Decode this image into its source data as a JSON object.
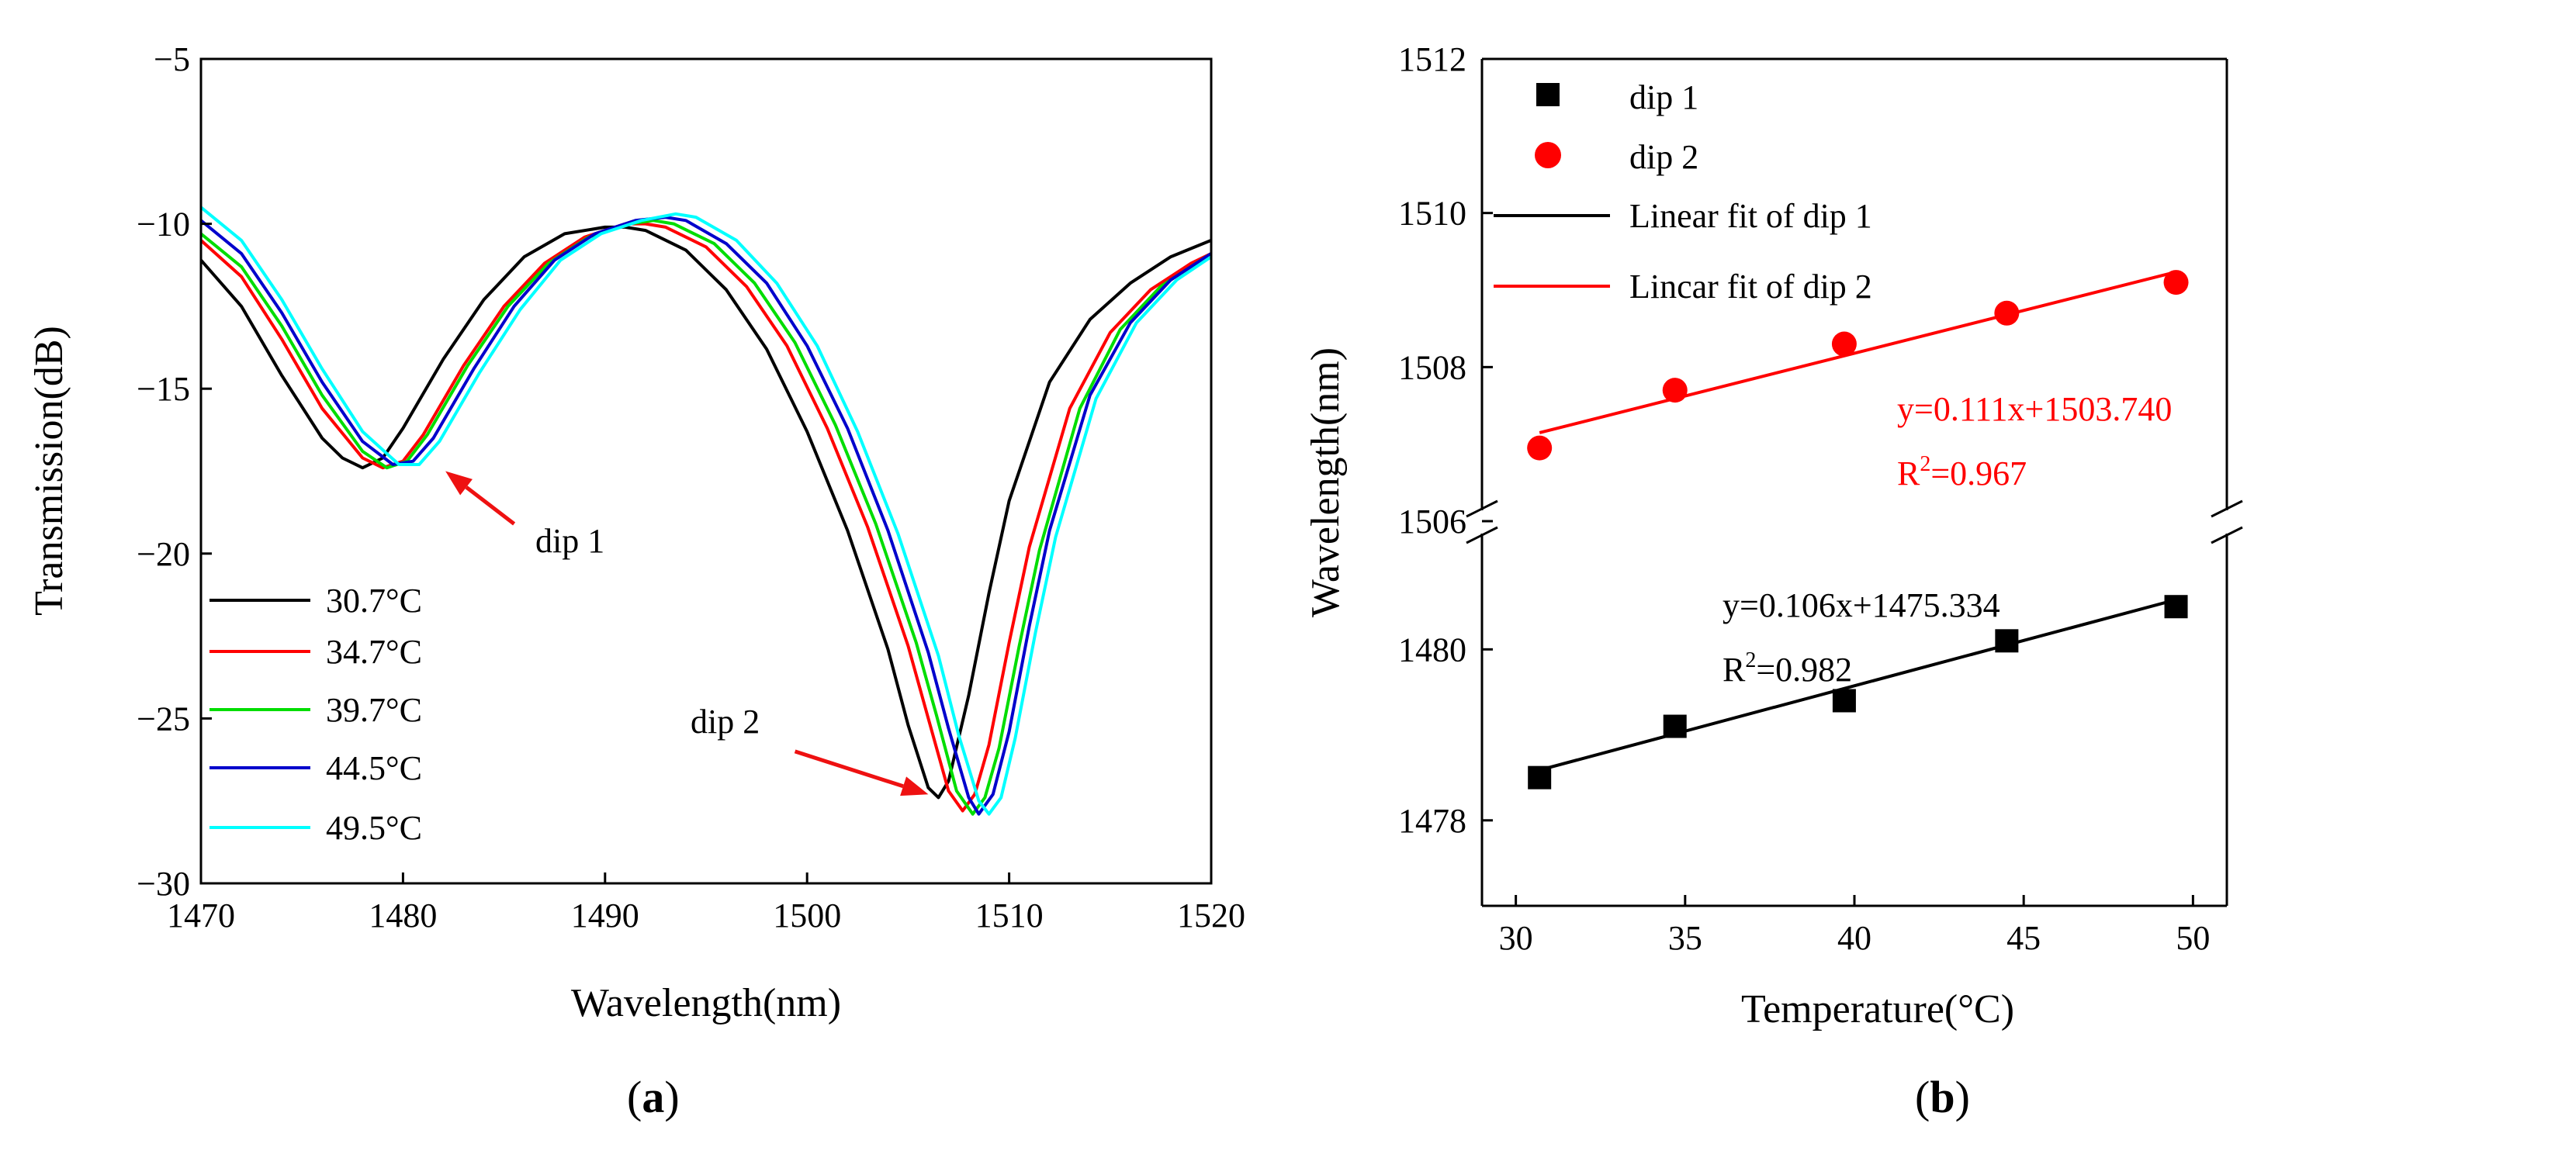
{
  "chart_data": [
    {
      "id": "a",
      "type": "line",
      "panel_label_open": "(",
      "panel_label_letter": "a",
      "panel_label_close": ")",
      "xlabel": "Wavelength(nm)",
      "ylabel": "Transmission(dB)",
      "xlim": [
        1470,
        1520
      ],
      "ylim": [
        -30,
        -5
      ],
      "xticks": [
        1470,
        1480,
        1490,
        1500,
        1510,
        1520
      ],
      "yticks": [
        -5,
        -10,
        -15,
        -20,
        -25,
        -30
      ],
      "xtick_labels": [
        "1470",
        "1480",
        "1490",
        "1500",
        "1510",
        "1520"
      ],
      "ytick_labels": [
        "−5",
        "−10",
        "−15",
        "−20",
        "−25",
        "−30"
      ],
      "series": [
        {
          "name": "30.7°C",
          "color": "#000000",
          "x": [
            1470,
            1472,
            1474,
            1476,
            1477,
            1478,
            1479,
            1480,
            1482,
            1484,
            1486,
            1488,
            1490,
            1491,
            1492,
            1494,
            1496,
            1498,
            1500,
            1502,
            1504,
            1505,
            1506,
            1506.5,
            1507,
            1508,
            1509,
            1510,
            1512,
            1514,
            1516,
            1518,
            1520
          ],
          "y": [
            -11.1,
            -12.5,
            -14.6,
            -16.5,
            -17.1,
            -17.4,
            -17.1,
            -16.2,
            -14.1,
            -12.3,
            -11.0,
            -10.3,
            -10.1,
            -10.1,
            -10.2,
            -10.8,
            -12.0,
            -13.8,
            -16.3,
            -19.3,
            -22.9,
            -25.2,
            -27.1,
            -27.4,
            -26.9,
            -24.3,
            -21.2,
            -18.4,
            -14.8,
            -12.9,
            -11.8,
            -11.0,
            -10.5
          ]
        },
        {
          "name": "34.7°C",
          "color": "#ff0000",
          "x": [
            1470,
            1472,
            1474,
            1476,
            1478,
            1479,
            1480,
            1481,
            1483,
            1485,
            1487,
            1489,
            1491,
            1492,
            1493,
            1495,
            1497,
            1499,
            1501,
            1503,
            1505,
            1506,
            1507,
            1507.7,
            1508.3,
            1509,
            1510,
            1511,
            1513,
            1515,
            1517,
            1519,
            1520
          ],
          "y": [
            -10.5,
            -11.6,
            -13.5,
            -15.6,
            -17.1,
            -17.4,
            -17.2,
            -16.4,
            -14.3,
            -12.5,
            -11.2,
            -10.4,
            -10.0,
            -10.0,
            -10.1,
            -10.7,
            -11.9,
            -13.7,
            -16.2,
            -19.2,
            -22.8,
            -25.0,
            -27.2,
            -27.8,
            -27.3,
            -25.8,
            -22.7,
            -19.8,
            -15.6,
            -13.3,
            -12.0,
            -11.2,
            -10.9
          ]
        },
        {
          "name": "39.7°C",
          "color": "#00dd00",
          "x": [
            1470,
            1472,
            1474,
            1476,
            1478,
            1479.2,
            1480.2,
            1481.2,
            1483.2,
            1485.2,
            1487.2,
            1489.2,
            1491.2,
            1492.4,
            1493.4,
            1495.4,
            1497.4,
            1499.4,
            1501.4,
            1503.4,
            1505.4,
            1506.4,
            1507.4,
            1508.2,
            1508.8,
            1509.5,
            1510.5,
            1511.5,
            1513.5,
            1515.5,
            1517.5,
            1519.5,
            1520
          ],
          "y": [
            -10.3,
            -11.3,
            -13.1,
            -15.2,
            -16.9,
            -17.4,
            -17.2,
            -16.4,
            -14.3,
            -12.5,
            -11.2,
            -10.4,
            -10.0,
            -9.9,
            -10.0,
            -10.6,
            -11.8,
            -13.6,
            -16.1,
            -19.1,
            -22.7,
            -24.9,
            -27.2,
            -27.9,
            -27.4,
            -25.9,
            -22.8,
            -19.9,
            -15.6,
            -13.2,
            -11.9,
            -11.1,
            -10.9
          ]
        },
        {
          "name": "44.5°C",
          "color": "#0000cc",
          "x": [
            1470,
            1472,
            1474,
            1476,
            1478,
            1479.5,
            1480.5,
            1481.5,
            1483.5,
            1485.5,
            1487.5,
            1489.5,
            1491.5,
            1493,
            1494,
            1496,
            1498,
            1500,
            1502,
            1504,
            1506,
            1507,
            1508,
            1508.5,
            1509.2,
            1510,
            1511,
            1512,
            1514,
            1516,
            1518,
            1520
          ],
          "y": [
            -9.9,
            -10.9,
            -12.7,
            -14.8,
            -16.6,
            -17.3,
            -17.2,
            -16.5,
            -14.4,
            -12.5,
            -11.1,
            -10.3,
            -9.9,
            -9.8,
            -9.9,
            -10.6,
            -11.8,
            -13.7,
            -16.2,
            -19.3,
            -23.0,
            -25.3,
            -27.4,
            -27.9,
            -27.3,
            -25.4,
            -22.2,
            -19.3,
            -15.2,
            -13.0,
            -11.7,
            -10.9
          ]
        },
        {
          "name": "49.5°C",
          "color": "#00ffff",
          "x": [
            1470,
            1472,
            1474,
            1476,
            1478,
            1479.8,
            1480.8,
            1481.8,
            1483.8,
            1485.8,
            1487.8,
            1489.8,
            1491.8,
            1493.5,
            1494.5,
            1496.5,
            1498.5,
            1500.5,
            1502.5,
            1504.5,
            1506.5,
            1507.5,
            1508.5,
            1509,
            1509.6,
            1510.3,
            1511.3,
            1512.3,
            1514.3,
            1516.3,
            1518.3,
            1520
          ],
          "y": [
            -9.5,
            -10.5,
            -12.3,
            -14.4,
            -16.3,
            -17.3,
            -17.3,
            -16.6,
            -14.5,
            -12.6,
            -11.1,
            -10.3,
            -9.9,
            -9.7,
            -9.8,
            -10.5,
            -11.8,
            -13.7,
            -16.3,
            -19.4,
            -23.1,
            -25.5,
            -27.5,
            -27.9,
            -27.4,
            -25.6,
            -22.4,
            -19.5,
            -15.3,
            -13.0,
            -11.7,
            -11.0
          ]
        }
      ],
      "annotations": [
        {
          "text": "dip 1",
          "color": "#000000"
        },
        {
          "text": "dip 2",
          "color": "#000000"
        }
      ],
      "arrows": [
        {
          "label": "dip 1",
          "from": [
            1485.5,
            -19.1
          ],
          "to": [
            1482.1,
            -17.5
          ],
          "color": "#ee1111"
        },
        {
          "label": "dip 2",
          "from": [
            1499.4,
            -26.0
          ],
          "to": [
            1506.0,
            -27.3
          ],
          "color": "#ee1111"
        }
      ]
    },
    {
      "id": "b",
      "type": "scatter",
      "panel_label_open": "(",
      "panel_label_letter": "b",
      "panel_label_close": ")",
      "xlabel": "Temperature(°C)",
      "ylabel": "Wavelength(nm)",
      "xlim": [
        29,
        51
      ],
      "xticks": [
        30,
        35,
        40,
        45,
        50
      ],
      "xtick_labels": [
        "30",
        "35",
        "40",
        "45",
        "50"
      ],
      "axis_break": true,
      "upper_ylim": [
        1506,
        1512
      ],
      "upper_yticks": [
        1506,
        1508,
        1510,
        1512
      ],
      "upper_ytick_labels": [
        "1506",
        "1508",
        "1510",
        "1512"
      ],
      "lower_ylim": [
        1477,
        1481.5
      ],
      "lower_yticks": [
        1478,
        1480
      ],
      "lower_ytick_labels": [
        "1478",
        "1480"
      ],
      "series": [
        {
          "name": "dip 1",
          "marker": "square",
          "color": "#000000",
          "panel": "lower",
          "x": [
            30.7,
            34.7,
            39.7,
            44.5,
            49.5
          ],
          "y": [
            1478.5,
            1479.1,
            1479.4,
            1480.1,
            1480.5
          ]
        },
        {
          "name": "dip 2",
          "marker": "circle",
          "color": "#ff0000",
          "panel": "upper",
          "x": [
            30.7,
            34.7,
            39.7,
            44.5,
            49.5
          ],
          "y": [
            1506.95,
            1507.7,
            1508.3,
            1508.7,
            1509.1
          ]
        },
        {
          "name": "Linear fit of dip 1",
          "type": "line",
          "color": "#000000",
          "panel": "lower",
          "slope": 0.106,
          "intercept": 1475.334,
          "x_range": [
            30.7,
            49.5
          ]
        },
        {
          "name": "Lincar fit of dip 2",
          "type": "line",
          "color": "#ff0000",
          "panel": "upper",
          "slope": 0.111,
          "intercept": 1503.74,
          "x_range": [
            30.7,
            49.5
          ]
        }
      ],
      "fit_text": {
        "dip2_equation": "y=0.111x+1503.740",
        "dip2_r2_prefix": "R",
        "dip2_r2_sup": "2",
        "dip2_r2_value": "=0.967",
        "dip1_equation": "y=0.106x+1475.334",
        "dip1_r2_prefix": "R",
        "dip1_r2_sup": "2",
        "dip1_r2_value": "=0.982"
      }
    }
  ]
}
